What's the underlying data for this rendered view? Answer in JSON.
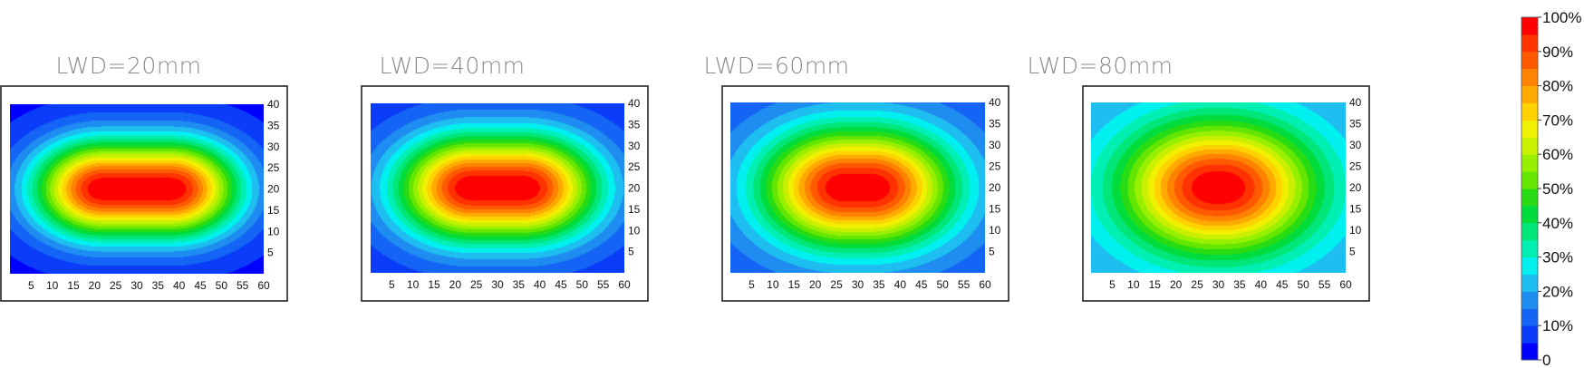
{
  "chart_data": [
    {
      "type": "heatmap",
      "title": "LWD=20mm",
      "x_ticks": [
        5,
        10,
        15,
        20,
        25,
        30,
        35,
        40,
        45,
        50,
        55,
        60
      ],
      "y_ticks": [
        5,
        10,
        15,
        20,
        25,
        30,
        35,
        40
      ],
      "xlim": [
        0,
        60
      ],
      "ylim": [
        0,
        40
      ],
      "peak": {
        "x": 30,
        "y": 20,
        "value": 100
      },
      "flat_top_length": 16,
      "spread_x": 17,
      "spread_y": 12,
      "min_value": 3
    },
    {
      "type": "heatmap",
      "title": "LWD=40mm",
      "x_ticks": [
        5,
        10,
        15,
        20,
        25,
        30,
        35,
        40,
        45,
        50,
        55,
        60
      ],
      "y_ticks": [
        5,
        10,
        15,
        20,
        25,
        30,
        35,
        40
      ],
      "xlim": [
        0,
        60
      ],
      "ylim": [
        0,
        40
      ],
      "peak": {
        "x": 30,
        "y": 20,
        "value": 100
      },
      "flat_top_length": 12,
      "spread_x": 18.5,
      "spread_y": 13,
      "min_value": 6
    },
    {
      "type": "heatmap",
      "title": "LWD=60mm",
      "x_ticks": [
        5,
        10,
        15,
        20,
        25,
        30,
        35,
        40,
        45,
        50,
        55,
        60
      ],
      "y_ticks": [
        5,
        10,
        15,
        20,
        25,
        30,
        35,
        40
      ],
      "xlim": [
        0,
        60
      ],
      "ylim": [
        0,
        40
      ],
      "peak": {
        "x": 30,
        "y": 20,
        "value": 100
      },
      "flat_top_length": 6,
      "spread_x": 20.5,
      "spread_y": 14.5,
      "min_value": 10
    },
    {
      "type": "heatmap",
      "title": "LWD=80mm",
      "x_ticks": [
        5,
        10,
        15,
        20,
        25,
        30,
        35,
        40,
        45,
        50,
        55,
        60
      ],
      "y_ticks": [
        5,
        10,
        15,
        20,
        25,
        30,
        35,
        40
      ],
      "xlim": [
        0,
        60
      ],
      "ylim": [
        0,
        40
      ],
      "peak": {
        "x": 30,
        "y": 20,
        "value": 100
      },
      "flat_top_length": 2,
      "spread_x": 22.5,
      "spread_y": 16,
      "min_value": 18
    }
  ],
  "colorbar": {
    "labels": [
      "0",
      "10%",
      "20%",
      "30%",
      "40%",
      "50%",
      "60%",
      "70%",
      "80%",
      "90%",
      "100%"
    ],
    "levels": 20,
    "colors": [
      "#0000ff",
      "#0a3cfa",
      "#1464f5",
      "#1e8cf0",
      "#1ebef0",
      "#00f0f0",
      "#00f0b4",
      "#00e678",
      "#00dc3c",
      "#28dc14",
      "#64e600",
      "#96f000",
      "#c8f000",
      "#f0f000",
      "#ffd200",
      "#ffaa00",
      "#ff8200",
      "#ff5a00",
      "#ff3200",
      "#ff0000"
    ]
  }
}
